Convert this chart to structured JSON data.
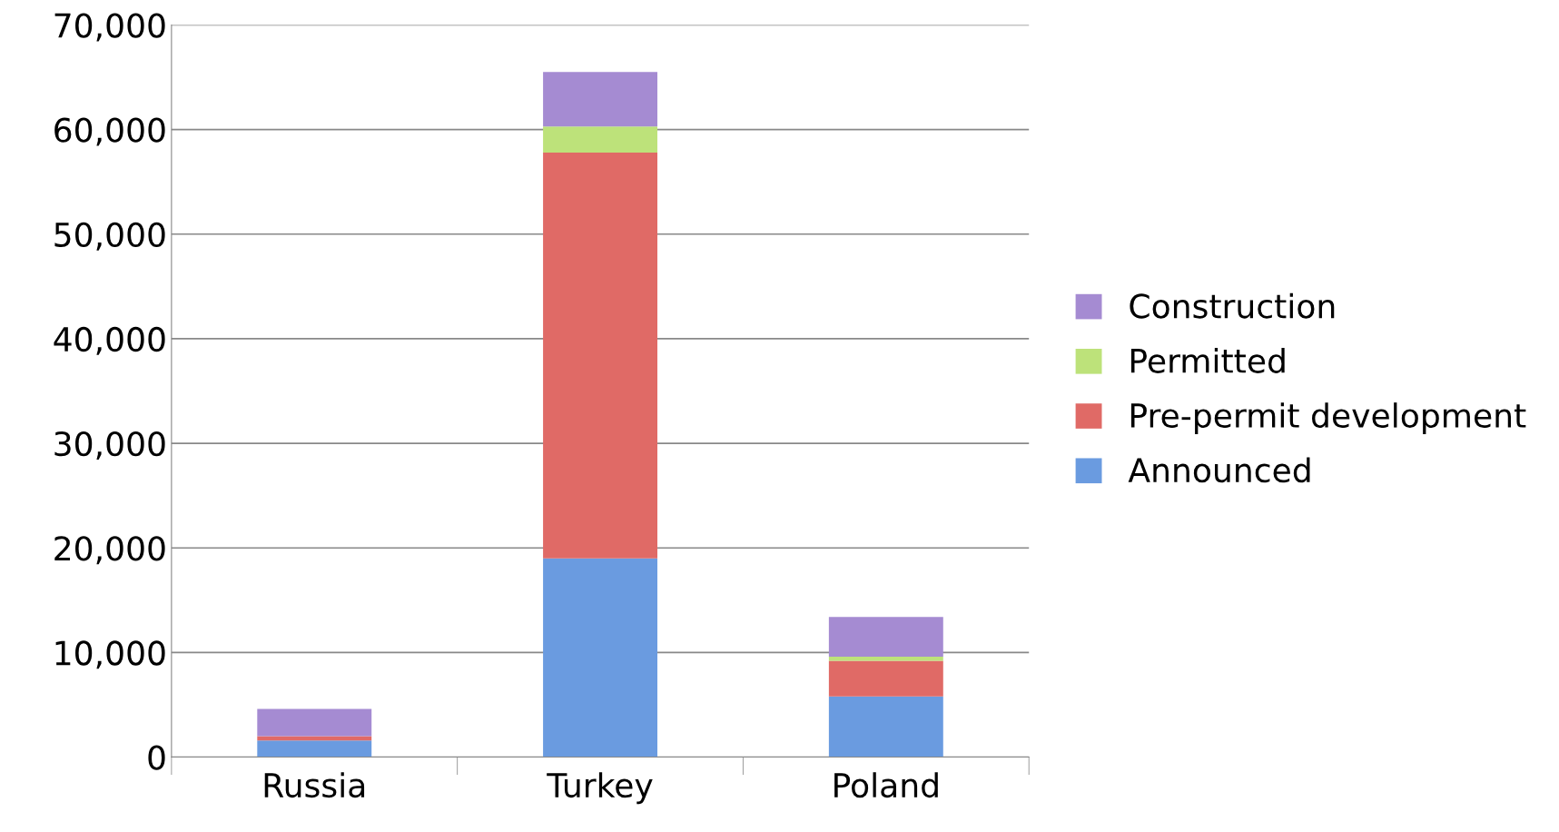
{
  "chart_data": {
    "type": "bar",
    "stacked": true,
    "categories": [
      "Russia",
      "Turkey",
      "Poland"
    ],
    "series": [
      {
        "name": "Announced",
        "color": "#6a9be0",
        "values": [
          1600,
          19000,
          5800
        ]
      },
      {
        "name": "Pre-permit development",
        "color": "#e06a66",
        "values": [
          400,
          38800,
          3400
        ]
      },
      {
        "name": "Permitted",
        "color": "#bde27a",
        "values": [
          0,
          2500,
          400
        ]
      },
      {
        "name": "Construction",
        "color": "#a58bd2",
        "values": [
          2600,
          5200,
          3800
        ]
      }
    ],
    "ylim": [
      0,
      70000
    ],
    "yticks": [
      0,
      {
        "value": 10000,
        "label": "10,000"
      },
      {
        "value": 20000,
        "label": "20,000"
      },
      {
        "value": 30000,
        "label": "30,000"
      },
      {
        "value": 40000,
        "label": "40,000"
      },
      {
        "value": 50000,
        "label": "50,000"
      },
      {
        "value": 60000,
        "label": "60,000"
      },
      {
        "value": 70000,
        "label": "70,000"
      }
    ],
    "grid": "y",
    "legend": "right"
  }
}
